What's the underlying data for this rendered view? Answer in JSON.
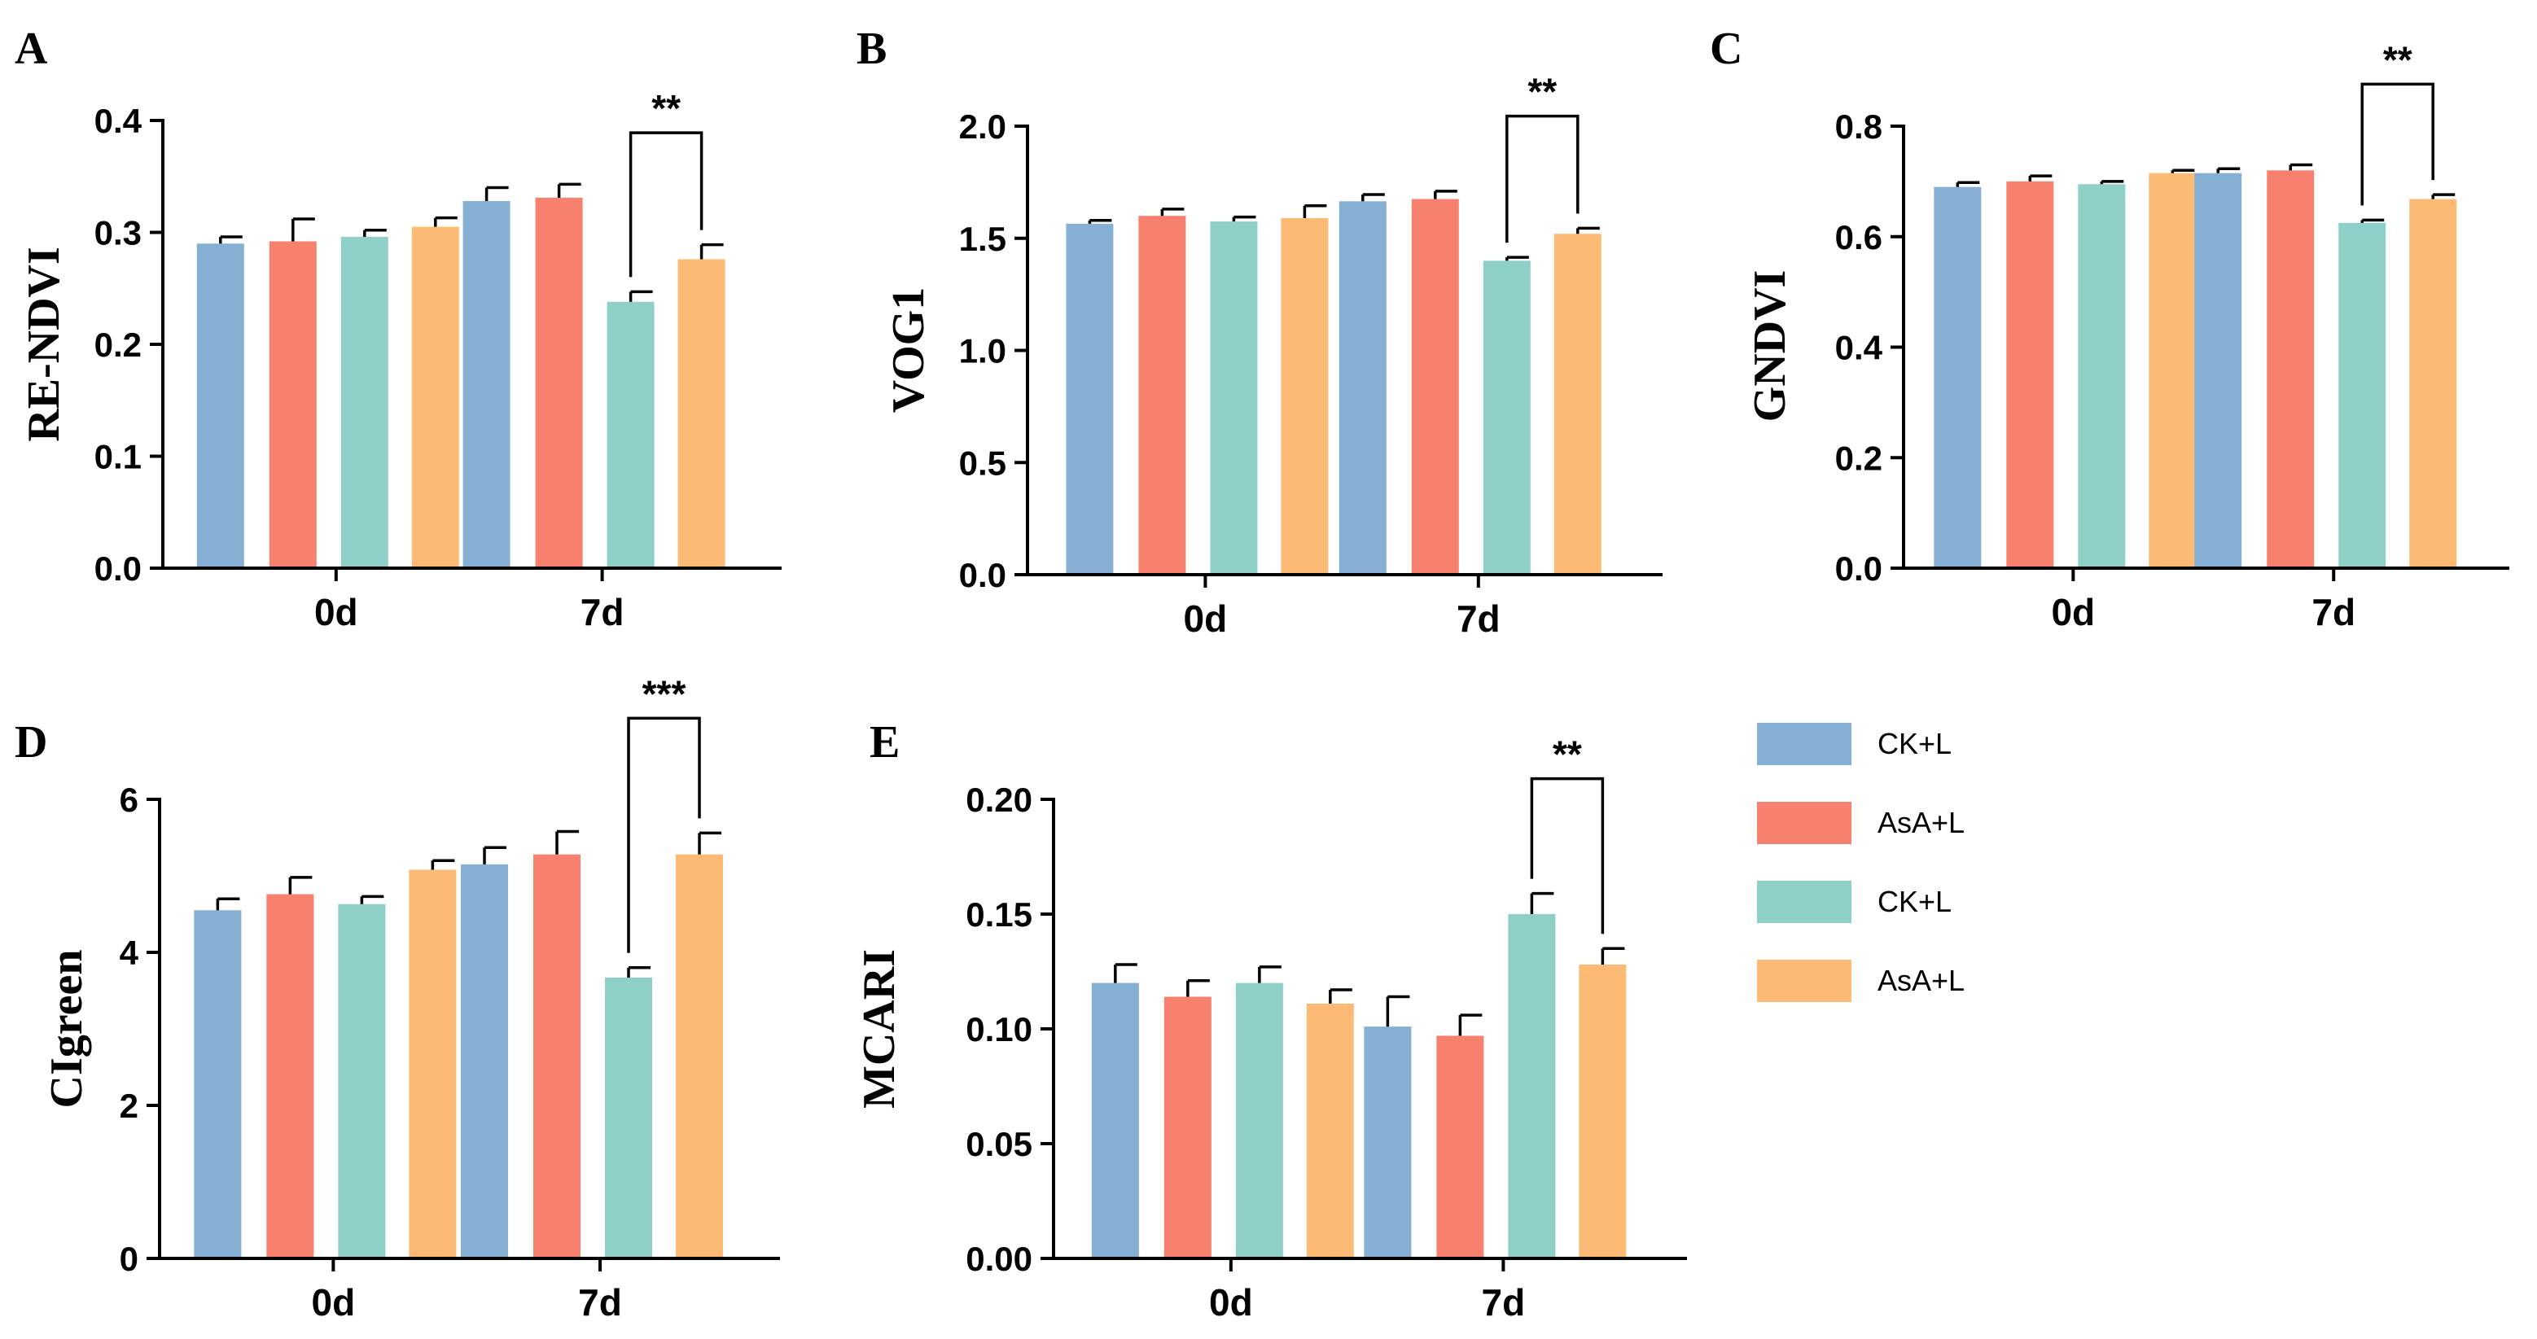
{
  "legend": {
    "items": [
      {
        "label": "CK+L",
        "color": "#85AFD3"
      },
      {
        "label": "AsA+L",
        "color": "#F7806E"
      },
      {
        "label": "CK+L",
        "color": "#8ECFC8"
      },
      {
        "label": "AsA+L",
        "color": "#FDBA74"
      }
    ]
  },
  "chart_data": [
    {
      "panel": "A",
      "type": "bar",
      "ylabel": "RE-NDVI",
      "categories": [
        "0d",
        "7d"
      ],
      "ylim": [
        0,
        0.4
      ],
      "yticks": [
        "0.0",
        "0.1",
        "0.2",
        "0.3",
        "0.4"
      ],
      "values": [
        [
          0.29,
          0.292,
          0.296,
          0.305
        ],
        [
          0.328,
          0.331,
          0.238,
          0.276
        ]
      ],
      "errors": [
        [
          0.006,
          0.02,
          0.006,
          0.008
        ],
        [
          0.012,
          0.012,
          0.009,
          0.013
        ]
      ],
      "significance": {
        "category": 1,
        "from": 2,
        "to": 3,
        "label": "**"
      }
    },
    {
      "panel": "B",
      "type": "bar",
      "ylabel": "VOG1",
      "categories": [
        "0d",
        "7d"
      ],
      "ylim": [
        0,
        2.0
      ],
      "yticks": [
        "0.0",
        "0.5",
        "1.0",
        "1.5",
        "2.0"
      ],
      "values": [
        [
          1.565,
          1.6,
          1.575,
          1.59
        ],
        [
          1.665,
          1.675,
          1.4,
          1.52
        ]
      ],
      "errors": [
        [
          0.015,
          0.03,
          0.02,
          0.055
        ],
        [
          0.03,
          0.035,
          0.015,
          0.025
        ]
      ],
      "significance": {
        "category": 1,
        "from": 2,
        "to": 3,
        "label": "**"
      }
    },
    {
      "panel": "C",
      "type": "bar",
      "ylabel": "GNDVI",
      "categories": [
        "0d",
        "7d"
      ],
      "ylim": [
        0,
        0.8
      ],
      "yticks": [
        "0.0",
        "0.2",
        "0.4",
        "0.6",
        "0.8"
      ],
      "values": [
        [
          0.69,
          0.7,
          0.695,
          0.715
        ],
        [
          0.715,
          0.72,
          0.625,
          0.668
        ]
      ],
      "errors": [
        [
          0.008,
          0.01,
          0.005,
          0.005
        ],
        [
          0.008,
          0.01,
          0.005,
          0.008
        ]
      ],
      "significance": {
        "category": 1,
        "from": 2,
        "to": 3,
        "label": "**"
      }
    },
    {
      "panel": "D",
      "type": "bar",
      "ylabel": "CIgreen",
      "categories": [
        "0d",
        "7d"
      ],
      "ylim": [
        0,
        6
      ],
      "yticks": [
        "0",
        "2",
        "4",
        "6"
      ],
      "values": [
        [
          4.55,
          4.76,
          4.63,
          5.08
        ],
        [
          5.15,
          5.28,
          3.67,
          5.28
        ]
      ],
      "errors": [
        [
          0.15,
          0.22,
          0.1,
          0.12
        ],
        [
          0.22,
          0.3,
          0.13,
          0.28
        ]
      ],
      "significance": {
        "category": 1,
        "from": 2,
        "to": 3,
        "label": "***"
      }
    },
    {
      "panel": "E",
      "type": "bar",
      "ylabel": "MCARI",
      "categories": [
        "0d",
        "7d"
      ],
      "ylim": [
        0,
        0.2
      ],
      "yticks": [
        "0.00",
        "0.05",
        "0.10",
        "0.15",
        "0.20"
      ],
      "values": [
        [
          0.12,
          0.114,
          0.12,
          0.111
        ],
        [
          0.101,
          0.097,
          0.15,
          0.128
        ]
      ],
      "errors": [
        [
          0.008,
          0.007,
          0.007,
          0.006
        ],
        [
          0.013,
          0.009,
          0.009,
          0.007
        ]
      ],
      "significance": {
        "category": 1,
        "from": 2,
        "to": 3,
        "label": "**"
      }
    }
  ]
}
